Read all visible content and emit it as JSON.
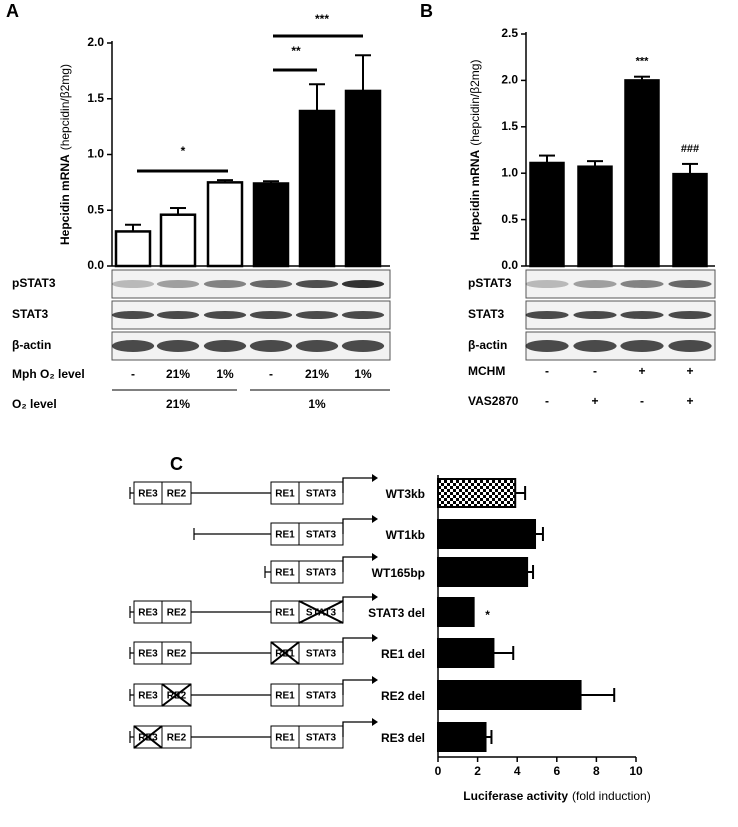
{
  "chart_data": [
    {
      "type": "bar",
      "panel": "A",
      "ylabel": "Hepcidin mRNA",
      "ylabel_unit": "(hepcidin/β2mg)",
      "values": [
        0.31,
        0.46,
        0.75,
        0.74,
        1.39,
        1.57
      ],
      "errors": [
        0.06,
        0.06,
        0.02,
        0.02,
        0.24,
        0.32
      ],
      "colors": [
        "#ffffff",
        "#ffffff",
        "#ffffff",
        "#000000",
        "#000000",
        "#000000"
      ],
      "ylim": [
        0,
        2
      ],
      "yticks": [
        {
          "value": 0,
          "label": "0.0"
        },
        0.5,
        {
          "value": 1,
          "label": "1.0"
        },
        1.5,
        {
          "value": 2,
          "label": "2.0"
        }
      ],
      "annotations": [
        "*",
        "**",
        "***"
      ],
      "blot_labels": [
        "pSTAT3",
        "STAT3",
        "β-actin"
      ],
      "conditions": [
        {
          "label": "Mph O₂ level",
          "values": [
            "-",
            "21%",
            "1%",
            "-",
            "21%",
            "1%"
          ]
        },
        {
          "label": "O₂ level",
          "values": [
            "21%",
            "1%"
          ]
        }
      ]
    },
    {
      "type": "bar",
      "panel": "B",
      "ylabel": "Hepcidin mRNA",
      "ylabel_unit": "(hepcidin/β2mg)",
      "values": [
        1.11,
        1.07,
        2.0,
        0.99
      ],
      "errors": [
        0.08,
        0.06,
        0.04,
        0.11
      ],
      "colors": [
        "#000000",
        "#000000",
        "#000000",
        "#000000"
      ],
      "ylim": [
        0,
        2.5
      ],
      "yticks": [
        {
          "value": 0,
          "label": "0.0"
        },
        0.5,
        {
          "value": 1,
          "label": "1.0"
        },
        1.5,
        {
          "value": 2,
          "label": "2.0"
        },
        2.5
      ],
      "annotations": [
        "***",
        "###"
      ],
      "blot_labels": [
        "pSTAT3",
        "STAT3",
        "β-actin"
      ],
      "conditions": [
        {
          "label": "MCHM",
          "values": [
            "-",
            "-",
            "+",
            "+"
          ]
        },
        {
          "label": "VAS2870",
          "values": [
            "-",
            "+",
            "-",
            "+"
          ]
        }
      ]
    },
    {
      "type": "barh",
      "panel": "C",
      "xlabel": "Luciferase activity",
      "xlabel_unit": "(fold induction)",
      "categories": [
        "WT3kb",
        "WT1kb",
        "WT165bp",
        "STAT3 del",
        "RE1 del",
        "RE2 del",
        "RE3 del"
      ],
      "values": [
        3.9,
        4.9,
        4.5,
        1.8,
        2.8,
        7.2,
        2.4
      ],
      "errors": [
        0.5,
        0.4,
        0.3,
        0,
        1.0,
        1.7,
        0.3
      ],
      "colors": [
        "checkered",
        "#000000",
        "#000000",
        "#000000",
        "#000000",
        "#000000",
        "#000000"
      ],
      "xlim": [
        0,
        10
      ],
      "xticks": [
        0,
        2,
        4,
        6,
        8,
        10
      ],
      "annotations": [
        "*"
      ],
      "constructs": [
        {
          "elements": [
            "RE3",
            "RE2",
            "RE1",
            "STAT3"
          ],
          "crossed": []
        },
        {
          "elements": [
            "RE1",
            "STAT3"
          ],
          "crossed": []
        },
        {
          "elements": [
            "RE1",
            "STAT3"
          ],
          "crossed": []
        },
        {
          "elements": [
            "RE3",
            "RE2",
            "RE1",
            "STAT3"
          ],
          "crossed": [
            "STAT3"
          ]
        },
        {
          "elements": [
            "RE3",
            "RE2",
            "RE1",
            "STAT3"
          ],
          "crossed": [
            "RE1"
          ]
        },
        {
          "elements": [
            "RE3",
            "RE2",
            "RE1",
            "STAT3"
          ],
          "crossed": [
            "RE2"
          ]
        },
        {
          "elements": [
            "RE3",
            "RE2",
            "RE1",
            "STAT3"
          ],
          "crossed": [
            "RE3"
          ]
        }
      ]
    }
  ]
}
